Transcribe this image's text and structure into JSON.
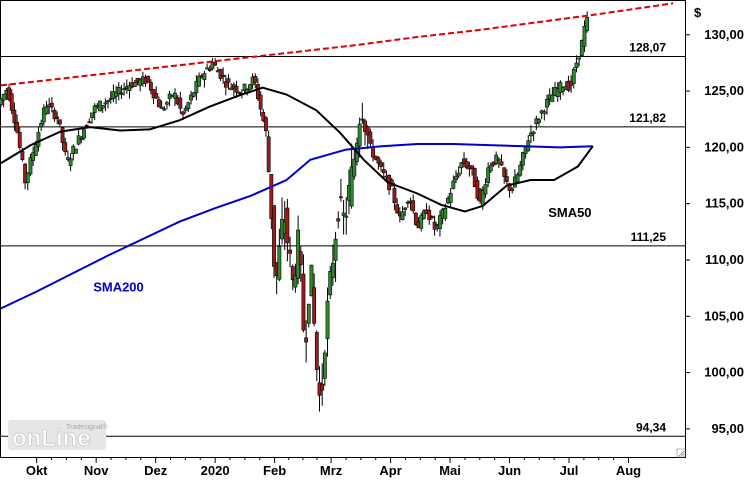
{
  "chart_data": {
    "type": "candlestick",
    "currency_label": "$",
    "ylim": [
      92.5,
      133.0
    ],
    "yticks": [
      {
        "value": 130,
        "label": "130,00"
      },
      {
        "value": 125,
        "label": "125,00"
      },
      {
        "value": 120,
        "label": "120,00"
      },
      {
        "value": 115,
        "label": "115,00"
      },
      {
        "value": 110,
        "label": "110,00"
      },
      {
        "value": 105,
        "label": "105,00"
      },
      {
        "value": 100,
        "label": "100,00"
      },
      {
        "value": 95,
        "label": "95,00"
      }
    ],
    "xlim": [
      0,
      11.5
    ],
    "months": [
      {
        "label": "Okt",
        "t": 0.6
      },
      {
        "label": "Nov",
        "t": 1.6
      },
      {
        "label": "Dez",
        "t": 2.6
      },
      {
        "label": "2020",
        "t": 3.6
      },
      {
        "label": "Feb",
        "t": 4.6
      },
      {
        "label": "Mrz",
        "t": 5.55
      },
      {
        "label": "Apr",
        "t": 6.55
      },
      {
        "label": "Mai",
        "t": 7.55
      },
      {
        "label": "Jun",
        "t": 8.55
      },
      {
        "label": "Jul",
        "t": 9.55
      },
      {
        "label": "Aug",
        "t": 10.55
      }
    ],
    "levels": [
      {
        "value": 128.07,
        "label": "128,07"
      },
      {
        "value": 121.82,
        "label": "121,82"
      },
      {
        "value": 111.25,
        "label": "111,25"
      },
      {
        "value": 94.34,
        "label": "94,34"
      }
    ],
    "series": [
      {
        "name": "SMA200",
        "color": "#0000cc",
        "style": "solid",
        "points": [
          [
            0,
            105.7
          ],
          [
            0.6,
            107.2
          ],
          [
            1.2,
            108.8
          ],
          [
            1.8,
            110.4
          ],
          [
            2.4,
            111.9
          ],
          [
            3.0,
            113.4
          ],
          [
            3.6,
            114.6
          ],
          [
            4.2,
            115.7
          ],
          [
            4.8,
            117.1
          ],
          [
            5.2,
            118.9
          ],
          [
            5.8,
            119.8
          ],
          [
            6.4,
            120.1
          ],
          [
            7.0,
            120.3
          ],
          [
            7.6,
            120.3
          ],
          [
            8.2,
            120.2
          ],
          [
            8.8,
            120.1
          ],
          [
            9.4,
            120.0
          ],
          [
            9.95,
            120.1
          ]
        ]
      },
      {
        "name": "SMA50",
        "color": "#000000",
        "style": "solid",
        "points": [
          [
            0,
            118.6
          ],
          [
            0.5,
            120.2
          ],
          [
            1.0,
            121.4
          ],
          [
            1.5,
            121.8
          ],
          [
            2.0,
            121.5
          ],
          [
            2.5,
            121.6
          ],
          [
            3.0,
            122.4
          ],
          [
            3.5,
            123.6
          ],
          [
            4.0,
            124.6
          ],
          [
            4.4,
            125.3
          ],
          [
            4.8,
            124.7
          ],
          [
            5.3,
            123.3
          ],
          [
            5.7,
            121.3
          ],
          [
            6.1,
            118.9
          ],
          [
            6.5,
            116.9
          ],
          [
            7.0,
            115.9
          ],
          [
            7.4,
            114.9
          ],
          [
            7.8,
            114.3
          ],
          [
            8.1,
            114.8
          ],
          [
            8.5,
            116.6
          ],
          [
            8.9,
            117.1
          ],
          [
            9.3,
            117.1
          ],
          [
            9.7,
            118.3
          ],
          [
            9.95,
            120.1
          ]
        ]
      },
      {
        "name": "",
        "color": "#dd0000",
        "style": "dashed",
        "points": [
          [
            0,
            125.5
          ],
          [
            1.0,
            126.1
          ],
          [
            2.0,
            126.7
          ],
          [
            3.0,
            127.3
          ],
          [
            4.0,
            127.9
          ],
          [
            5.0,
            128.5
          ],
          [
            6.0,
            129.1
          ],
          [
            7.0,
            129.8
          ],
          [
            8.0,
            130.4
          ],
          [
            9.0,
            131.1
          ],
          [
            10.0,
            131.8
          ],
          [
            11.3,
            132.8
          ]
        ]
      }
    ],
    "series_labels": [
      {
        "text": "SMA200",
        "color": "#0000cc",
        "t": 1.55,
        "v": 107.2
      },
      {
        "text": "SMA50",
        "color": "#000000",
        "t": 9.2,
        "v": 113.8
      }
    ],
    "price_path": [
      [
        0,
        123.8
      ],
      [
        0.15,
        125.3
      ],
      [
        0.3,
        121.9
      ],
      [
        0.45,
        117.0
      ],
      [
        0.6,
        119.9
      ],
      [
        0.8,
        123.9
      ],
      [
        1.0,
        122.6
      ],
      [
        1.15,
        118.6
      ],
      [
        1.3,
        120.2
      ],
      [
        1.6,
        123.4
      ],
      [
        1.9,
        124.4
      ],
      [
        2.2,
        125.6
      ],
      [
        2.5,
        126.0
      ],
      [
        2.75,
        123.3
      ],
      [
        2.95,
        124.9
      ],
      [
        3.1,
        122.8
      ],
      [
        3.4,
        126.3
      ],
      [
        3.6,
        127.5
      ],
      [
        3.85,
        125.6
      ],
      [
        4.1,
        125.0
      ],
      [
        4.3,
        126.1
      ],
      [
        4.5,
        121.3
      ],
      [
        4.58,
        115.2
      ],
      [
        4.66,
        107.5
      ],
      [
        4.8,
        114.3
      ],
      [
        4.95,
        107.9
      ],
      [
        5.05,
        111.8
      ],
      [
        5.15,
        102.1
      ],
      [
        5.25,
        109.6
      ],
      [
        5.35,
        100.6
      ],
      [
        5.42,
        96.7
      ],
      [
        5.5,
        103.9
      ],
      [
        5.62,
        110.0
      ],
      [
        5.72,
        115.0
      ],
      [
        5.82,
        113.4
      ],
      [
        5.98,
        118.9
      ],
      [
        6.1,
        124.0
      ],
      [
        6.25,
        120.0
      ],
      [
        6.45,
        117.8
      ],
      [
        6.6,
        116.4
      ],
      [
        6.75,
        113.6
      ],
      [
        6.9,
        115.8
      ],
      [
        7.05,
        112.9
      ],
      [
        7.2,
        114.5
      ],
      [
        7.35,
        112.6
      ],
      [
        7.5,
        114.5
      ],
      [
        7.65,
        116.8
      ],
      [
        7.8,
        118.8
      ],
      [
        7.95,
        118.0
      ],
      [
        8.1,
        115.0
      ],
      [
        8.25,
        118.5
      ],
      [
        8.4,
        119.0
      ],
      [
        8.52,
        117.0
      ],
      [
        8.62,
        116.2
      ],
      [
        8.75,
        117.8
      ],
      [
        8.9,
        120.7
      ],
      [
        9.05,
        122.3
      ],
      [
        9.2,
        123.8
      ],
      [
        9.35,
        124.9
      ],
      [
        9.5,
        125.6
      ],
      [
        9.62,
        125.4
      ],
      [
        9.7,
        127.2
      ],
      [
        9.8,
        129.0
      ],
      [
        9.88,
        131.2
      ]
    ]
  },
  "logo": {
    "brand": "onLine",
    "sub": "Tradesignal®"
  }
}
